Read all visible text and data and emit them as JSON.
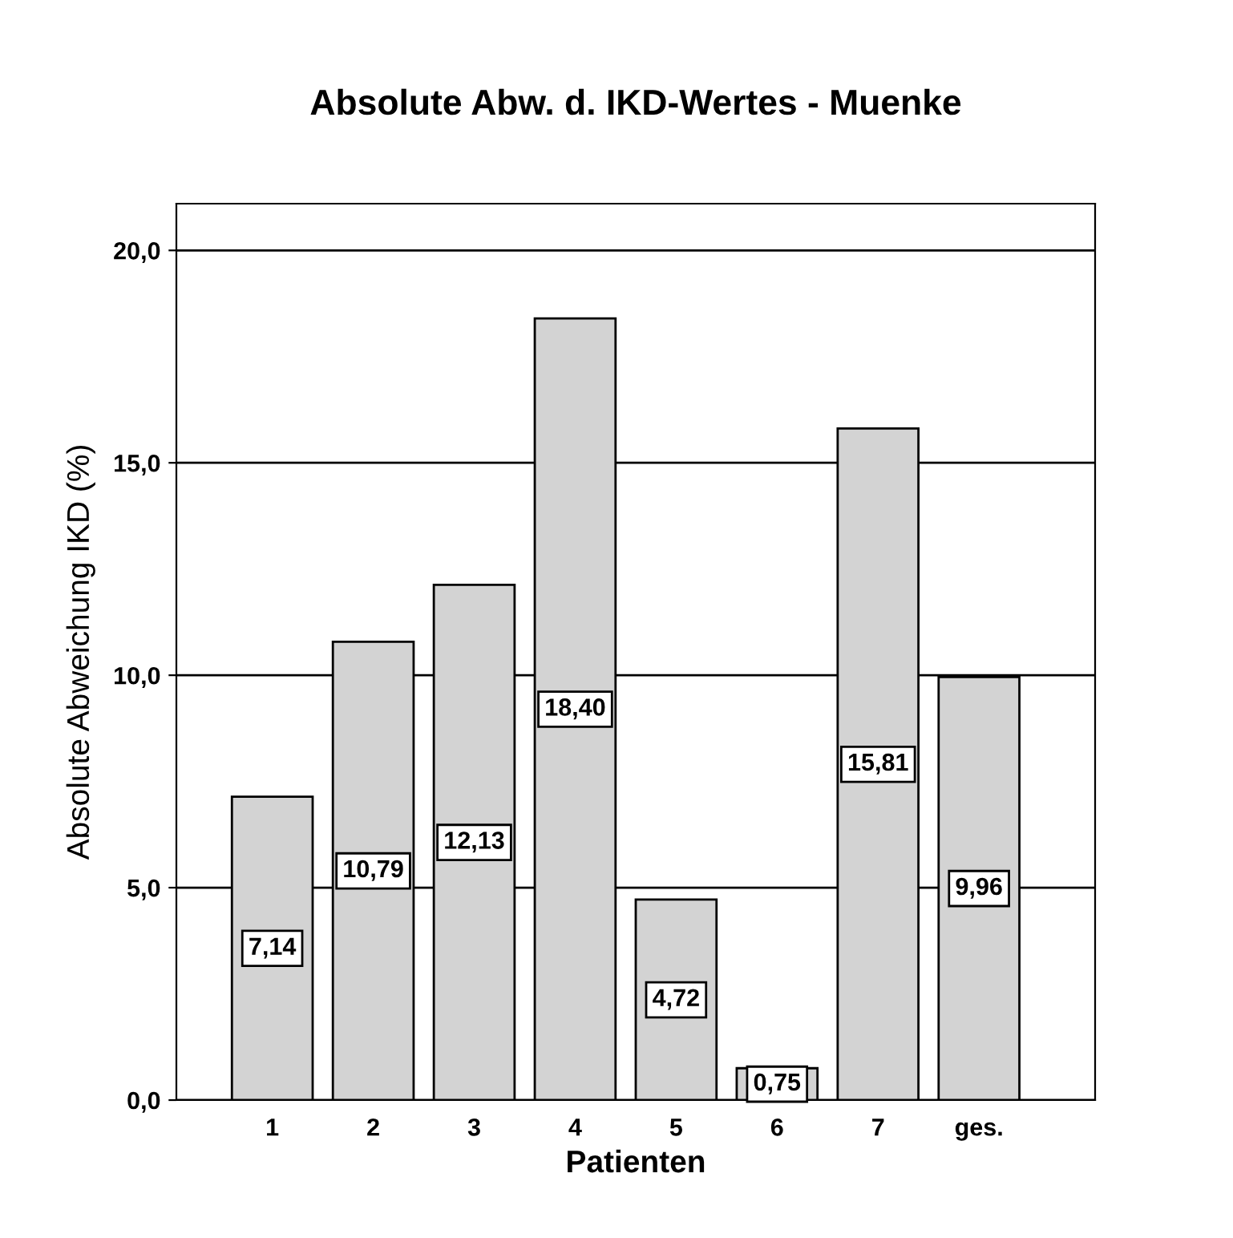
{
  "chart_data": {
    "type": "bar",
    "title": "Absolute Abw. d. IKD-Wertes - Muenke",
    "xlabel": "Patienten",
    "ylabel": "Absolute Abweichung IKD (%)",
    "categories": [
      "1",
      "2",
      "3",
      "4",
      "5",
      "6",
      "7",
      "ges."
    ],
    "values": [
      7.14,
      10.79,
      12.13,
      18.4,
      4.72,
      0.75,
      15.81,
      9.96
    ],
    "value_labels": [
      "7,14",
      "10,79",
      "12,13",
      "18,40",
      "4,72",
      "0,75",
      "15,81",
      "9,96"
    ],
    "color": "#d3d3d3",
    "ylim": [
      0,
      21.1
    ],
    "yticks": [
      {
        "value": 0,
        "label": "0,0"
      },
      {
        "value": 5,
        "label": "5,0"
      },
      {
        "value": 10,
        "label": "10,0"
      },
      {
        "value": 15,
        "label": "15,0"
      },
      {
        "value": 20,
        "label": "20,0"
      }
    ],
    "grid": "y",
    "legend": false
  }
}
